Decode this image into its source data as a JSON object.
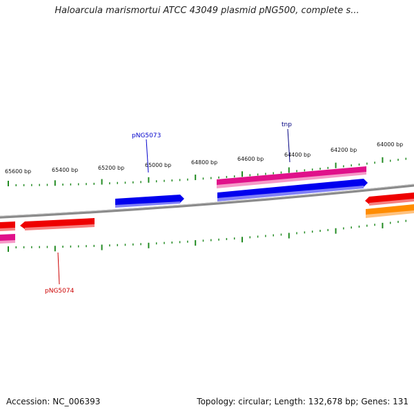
{
  "title": "Haloarcula marismortui ATCC 43049 plasmid pNG500, complete s...",
  "ruler": {
    "labels": [
      "65600 bp",
      "65400 bp",
      "65200 bp",
      "65000 bp",
      "64800 bp",
      "64600 bp",
      "64400 bp",
      "64200 bp",
      "64000 bp"
    ],
    "tick_color": "#228B22"
  },
  "genes": [
    {
      "name": "pNG5073",
      "color": "#0000cc",
      "fill": "#0000ee"
    },
    {
      "name": "tnp",
      "color": "#000080",
      "fill": "#0000ee"
    },
    {
      "name": "pNG5074",
      "color": "#cc0000",
      "fill": "#ee0000"
    }
  ],
  "colors": {
    "backbone": "#808080",
    "forward_gene": "#0000ee",
    "reverse_gene": "#ee0000",
    "pseudo_gene": "#e0118a",
    "other_gene": "#ff8c00"
  },
  "footer": {
    "accession": "Accession: NC_006393",
    "summary": "Topology: circular; Length: 132,678 bp; Genes: 131"
  }
}
